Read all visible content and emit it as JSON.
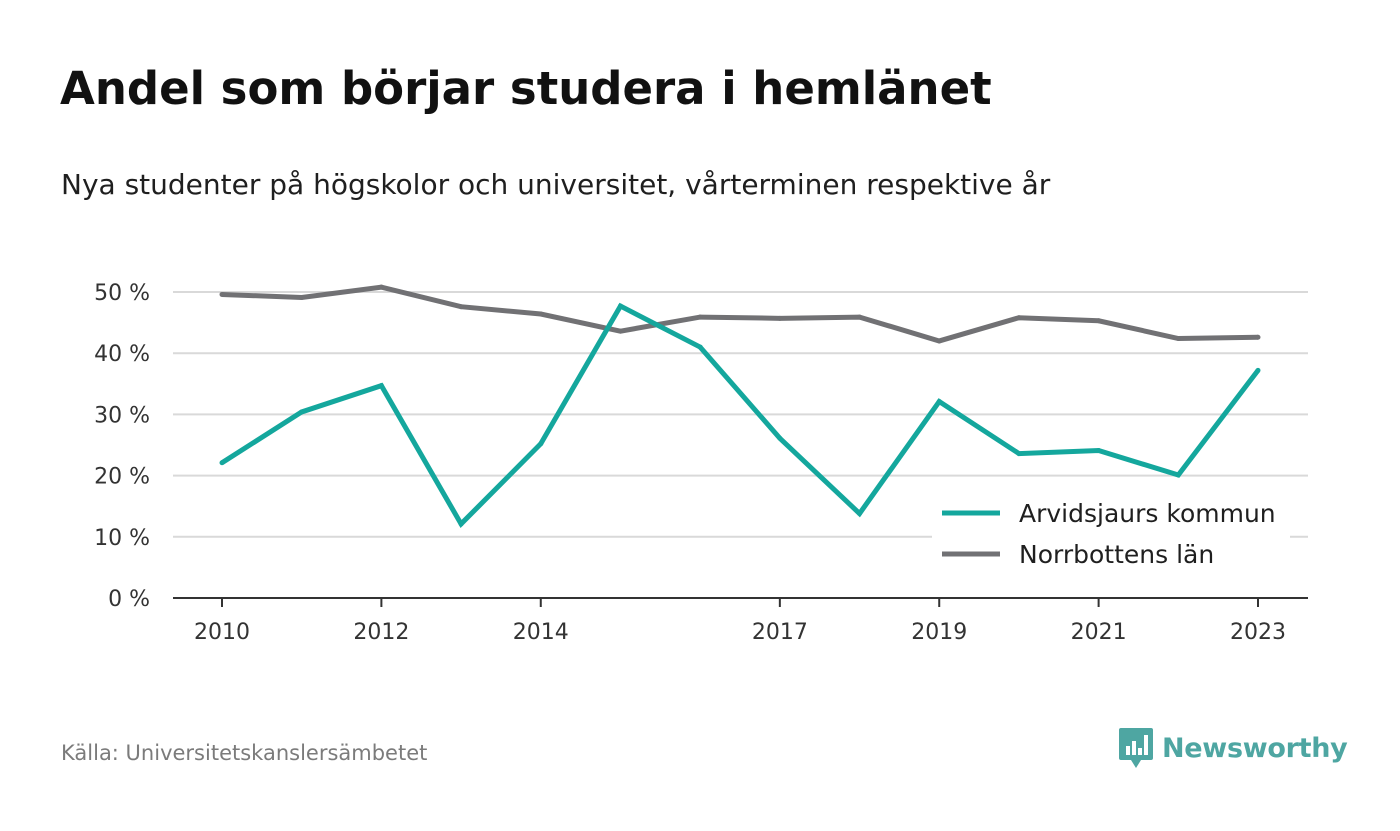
{
  "title": "Andel som börjar studera i hemlänet",
  "subtitle": "Nya studenter på högskolor och universitet, vårterminen respektive år",
  "source": "Källa: Universitetskanslersämbetet",
  "brand": {
    "name": "Newsworthy",
    "color": "#4ea6a2"
  },
  "chart_data": {
    "type": "line",
    "x": [
      2010,
      2011,
      2012,
      2013,
      2014,
      2015,
      2016,
      2017,
      2018,
      2019,
      2020,
      2021,
      2022,
      2023
    ],
    "x_tick_labels": [
      "2010",
      "2012",
      "2014",
      "2017",
      "2019",
      "2021",
      "2023"
    ],
    "x_tick_values": [
      2010,
      2012,
      2014,
      2017,
      2019,
      2021,
      2023
    ],
    "xlim": [
      2010,
      2023
    ],
    "ylim": [
      0,
      50
    ],
    "y_ticks": [
      0,
      10,
      20,
      30,
      40,
      50
    ],
    "y_tick_labels": [
      "0 %",
      "10 %",
      "20 %",
      "30 %",
      "40 %",
      "50 %"
    ],
    "grid": true,
    "legend_position": "bottom-right",
    "series": [
      {
        "name": "Arvidsjaurs kommun",
        "color": "#14a79d",
        "values": [
          22.1,
          30.4,
          34.7,
          12.1,
          25.2,
          47.7,
          41.0,
          26.1,
          13.8,
          32.1,
          23.6,
          24.1,
          20.1,
          37.2
        ]
      },
      {
        "name": "Norrbottens län",
        "color": "#717174",
        "values": [
          49.6,
          49.1,
          50.8,
          47.6,
          46.4,
          43.6,
          45.9,
          45.7,
          45.9,
          42.0,
          45.8,
          45.3,
          42.4,
          42.6
        ]
      }
    ]
  }
}
